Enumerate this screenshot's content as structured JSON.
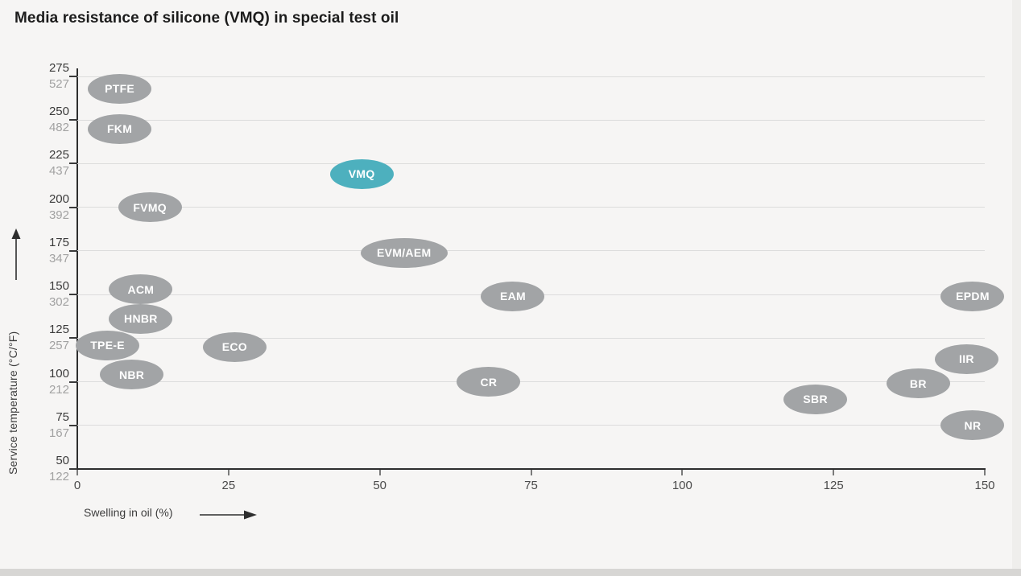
{
  "page": {
    "title": "Media resistance of silicone (VMQ) in special test oil"
  },
  "chart_data": {
    "type": "scatter",
    "title": "Media resistance of silicone (VMQ) in special test oil",
    "xlabel": "Swelling in oil (%)",
    "ylabel": "Service temperature (°C/°F)",
    "xlim": [
      0,
      150
    ],
    "ylim": [
      50,
      275
    ],
    "grid": "horizontal",
    "x_ticks": [
      0,
      25,
      50,
      75,
      100,
      125,
      150
    ],
    "y_ticks": [
      {
        "c": 275,
        "f": 527
      },
      {
        "c": 250,
        "f": 482
      },
      {
        "c": 225,
        "f": 437
      },
      {
        "c": 200,
        "f": 392
      },
      {
        "c": 175,
        "f": 347
      },
      {
        "c": 150,
        "f": 302
      },
      {
        "c": 125,
        "f": 257
      },
      {
        "c": 100,
        "f": 212
      },
      {
        "c": 75,
        "f": 167
      },
      {
        "c": 50,
        "f": 122
      }
    ],
    "points": [
      {
        "label": "PTFE",
        "x": 7,
        "y": 268
      },
      {
        "label": "FKM",
        "x": 7,
        "y": 245
      },
      {
        "label": "VMQ",
        "x": 47,
        "y": 219,
        "highlight": true
      },
      {
        "label": "FVMQ",
        "x": 12,
        "y": 200
      },
      {
        "label": "EVM/AEM",
        "x": 54,
        "y": 174
      },
      {
        "label": "ACM",
        "x": 10.5,
        "y": 153
      },
      {
        "label": "EAM",
        "x": 72,
        "y": 149
      },
      {
        "label": "EPDM",
        "x": 148,
        "y": 149
      },
      {
        "label": "HNBR",
        "x": 10.5,
        "y": 136
      },
      {
        "label": "TPE-E",
        "x": 5,
        "y": 121
      },
      {
        "label": "ECO",
        "x": 26,
        "y": 120
      },
      {
        "label": "IIR",
        "x": 147,
        "y": 113
      },
      {
        "label": "NBR",
        "x": 9,
        "y": 104
      },
      {
        "label": "CR",
        "x": 68,
        "y": 100
      },
      {
        "label": "BR",
        "x": 139,
        "y": 99
      },
      {
        "label": "SBR",
        "x": 122,
        "y": 90
      },
      {
        "label": "NR",
        "x": 148,
        "y": 75
      }
    ],
    "colors": {
      "bubble_fill": "#a2a4a6",
      "highlight_fill": "#4db0be",
      "bubble_text": "#ffffff",
      "grid": "#dcdcdc",
      "axis": "#2e2e2e",
      "tick_label_c": "#3b3b3b",
      "tick_label_f": "#a2a2a2",
      "background": "#f6f5f4"
    }
  }
}
